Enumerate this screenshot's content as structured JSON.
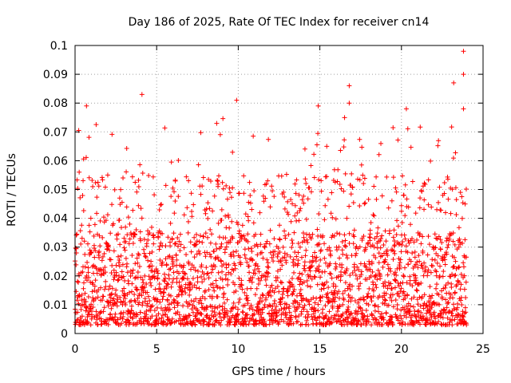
{
  "chart_data": {
    "type": "scatter",
    "title": "Day 186 of 2025, Rate Of TEC Index for receiver cn14",
    "xlabel": "GPS time / hours",
    "ylabel": "ROTI / TECUs",
    "xlim": [
      0,
      25
    ],
    "ylim": [
      0,
      0.1
    ],
    "x_ticks": [
      "0",
      "5",
      "10",
      "15",
      "20",
      "25"
    ],
    "y_ticks": [
      "0",
      "0.01",
      "0.02",
      "0.03",
      "0.04",
      "0.05",
      "0.06",
      "0.07",
      "0.08",
      "0.09",
      "0.1"
    ],
    "grid": true,
    "marker": "plus",
    "color": "#ff0000",
    "series": [
      {
        "x_range": [
          0,
          24
        ],
        "typical_range": [
          0.003,
          0.035
        ],
        "notable_points": [
          {
            "x": 0.7,
            "y": 0.079
          },
          {
            "x": 4.1,
            "y": 0.083
          },
          {
            "x": 9.9,
            "y": 0.081
          },
          {
            "x": 14.9,
            "y": 0.079
          },
          {
            "x": 16.8,
            "y": 0.086
          },
          {
            "x": 16.8,
            "y": 0.08
          },
          {
            "x": 20.3,
            "y": 0.078
          },
          {
            "x": 23.2,
            "y": 0.087
          },
          {
            "x": 23.8,
            "y": 0.098
          },
          {
            "x": 23.8,
            "y": 0.09
          },
          {
            "x": 23.8,
            "y": 0.078
          }
        ]
      }
    ]
  }
}
